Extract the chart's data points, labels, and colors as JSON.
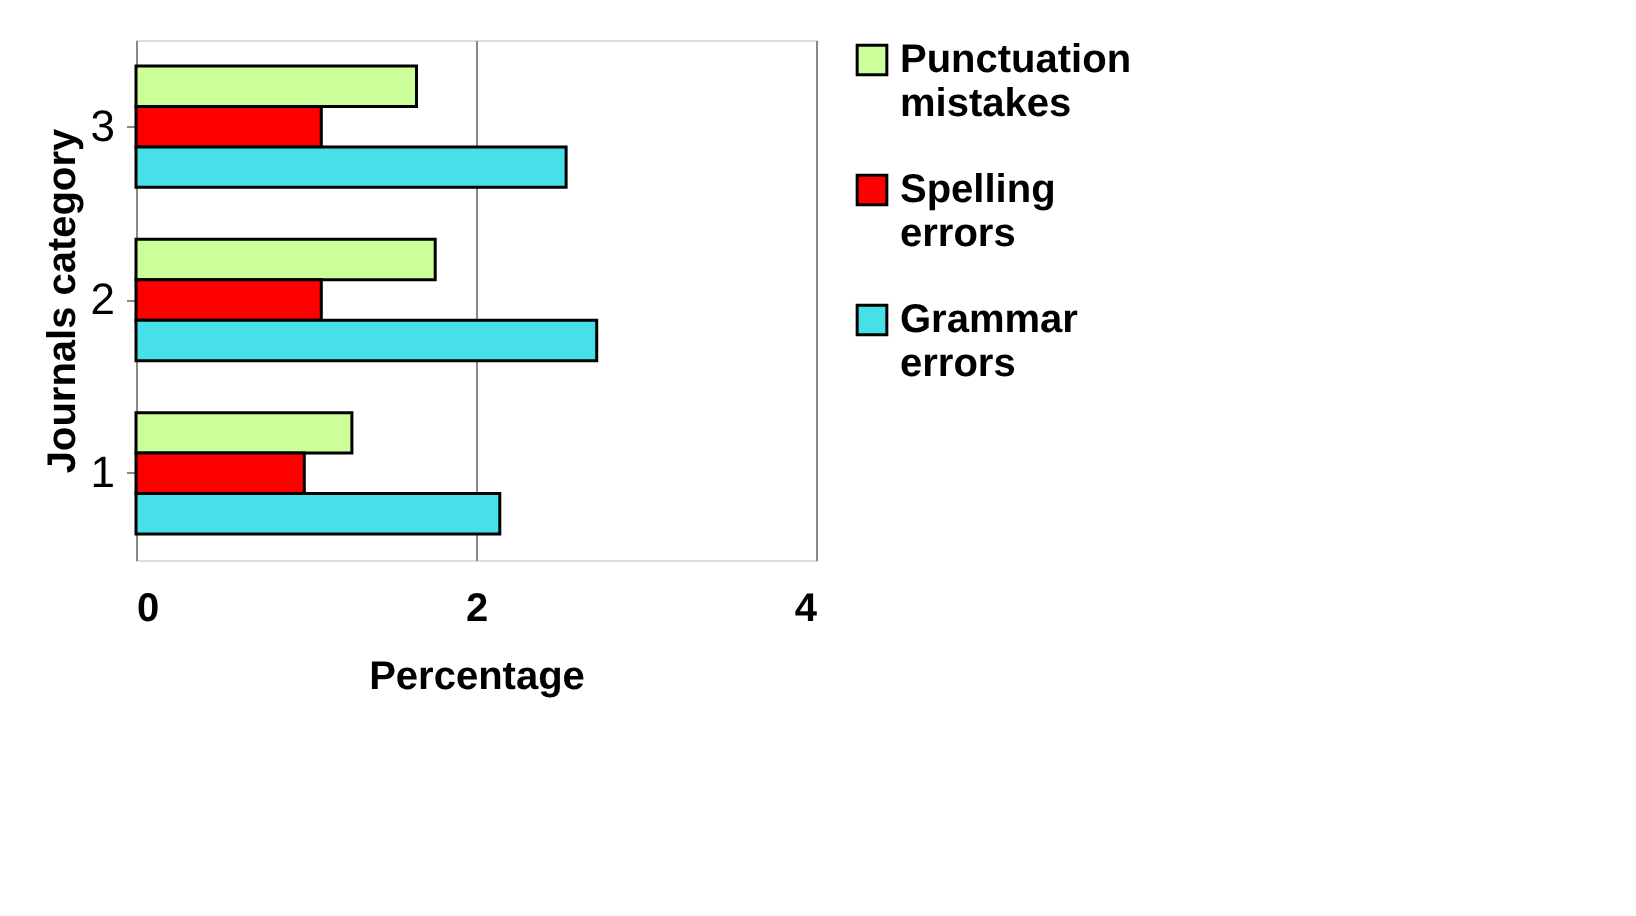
{
  "chart_data": {
    "type": "bar",
    "orientation": "horizontal",
    "xlabel": "Percentage",
    "ylabel": "Journals category",
    "categories": [
      "3",
      "2",
      "1"
    ],
    "series": [
      {
        "name": "Punctuation mistakes",
        "color": "#ccff99",
        "values": [
          1.65,
          1.76,
          1.27
        ]
      },
      {
        "name": "Spelling errors",
        "color": "#ff0000",
        "values": [
          1.09,
          1.09,
          0.99
        ]
      },
      {
        "name": "Grammar errors",
        "color": "#48e0e8",
        "values": [
          2.53,
          2.71,
          2.14
        ]
      }
    ],
    "xlim": [
      0,
      4
    ],
    "xticks": [
      0,
      2,
      4
    ],
    "grid": "x",
    "legend": "right"
  }
}
